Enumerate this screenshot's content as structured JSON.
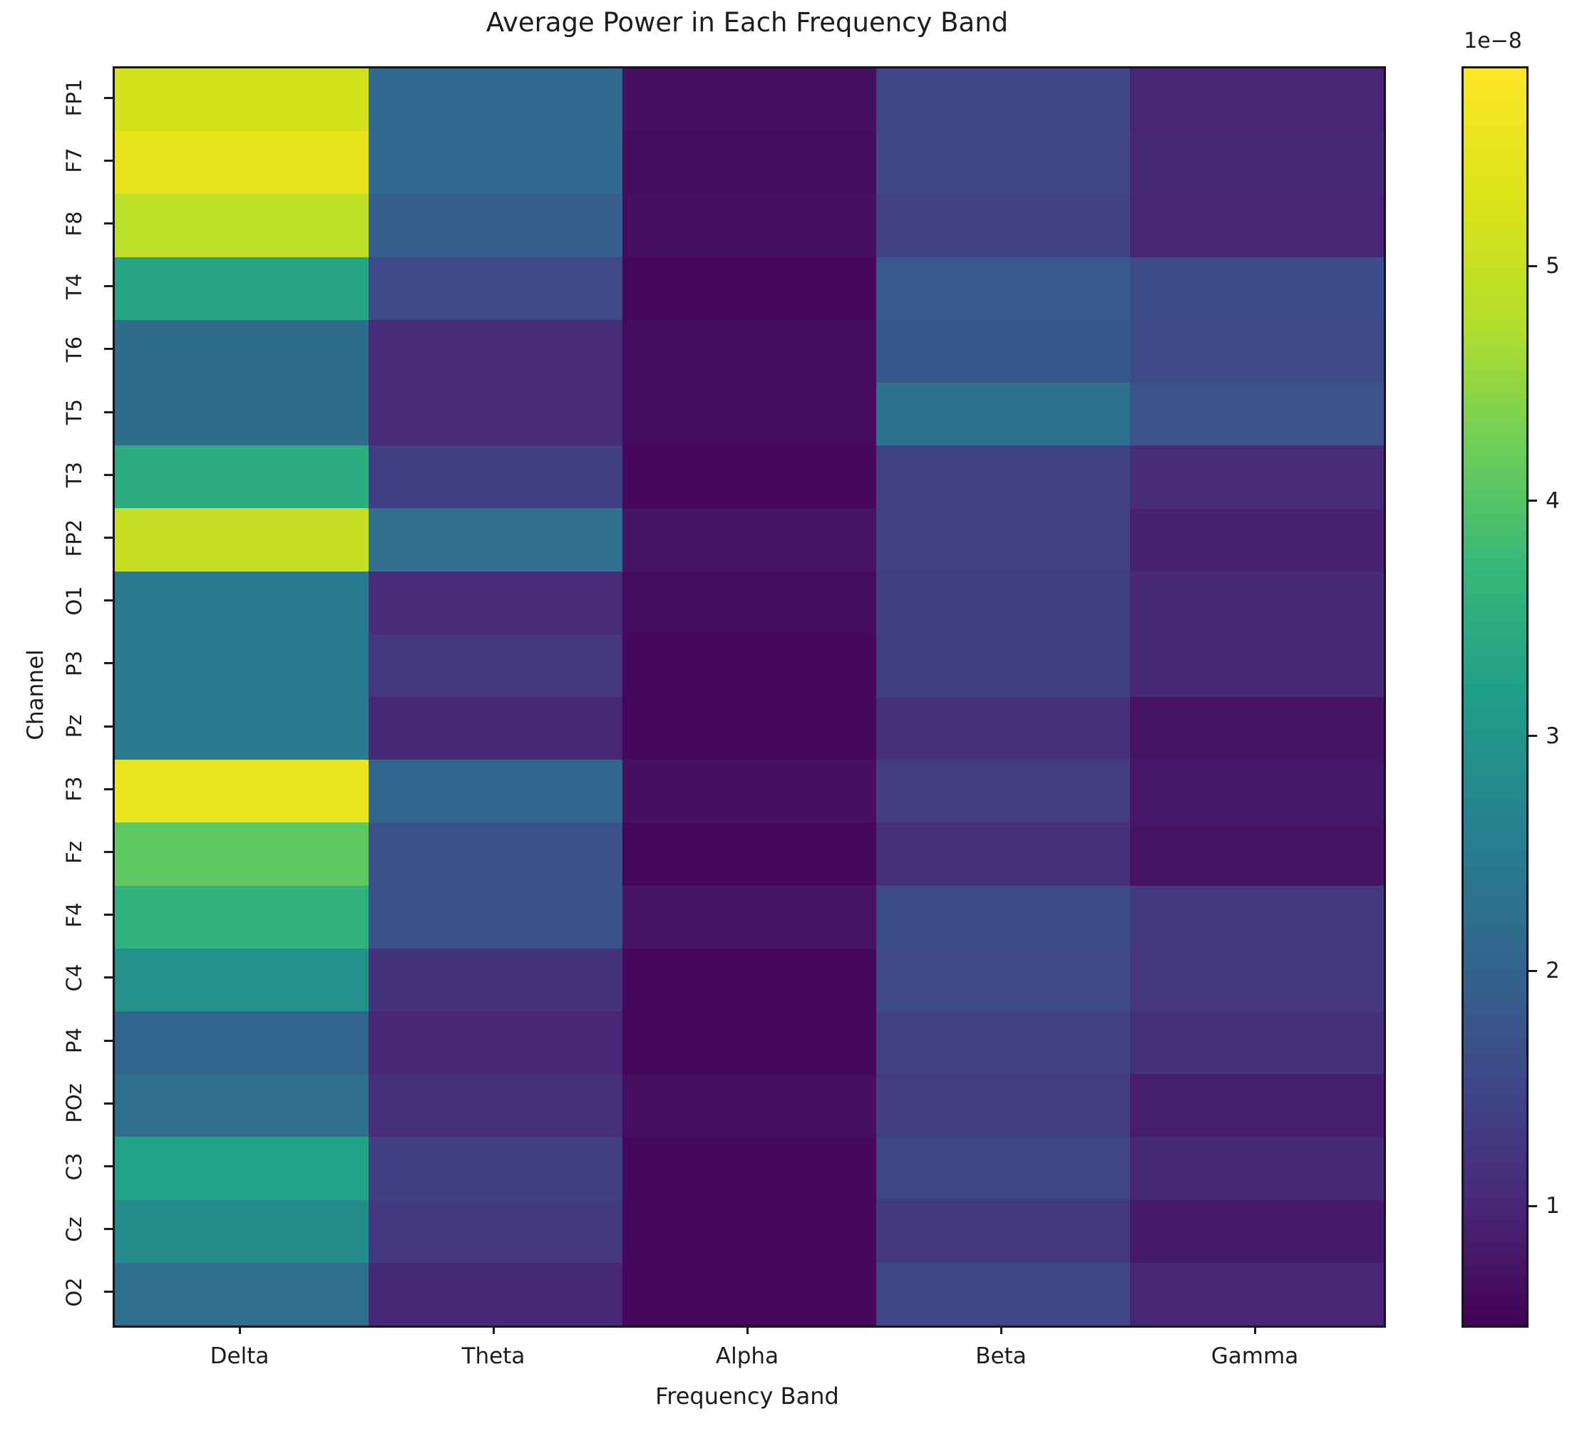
{
  "title": "Average Power in Each Frequency Band",
  "xlabel": "Frequency Band",
  "ylabel": "Channel",
  "colorbar": {
    "offset_label": "1e−8",
    "ticks": [
      5,
      4,
      3,
      2,
      1
    ],
    "top_color": "#fde725",
    "bottom_color": "#440154"
  },
  "chart_data": {
    "type": "heatmap",
    "colormap": "viridis",
    "title": "Average Power in Each Frequency Band",
    "xlabel": "Frequency Band",
    "ylabel": "Channel",
    "x_categories": [
      "Delta",
      "Theta",
      "Alpha",
      "Beta",
      "Gamma"
    ],
    "y_categories": [
      "FP1",
      "F7",
      "F8",
      "T4",
      "T6",
      "T5",
      "T3",
      "FP2",
      "O1",
      "P3",
      "Pz",
      "F3",
      "Fz",
      "F4",
      "C4",
      "P4",
      "POz",
      "C3",
      "Cz",
      "O2"
    ],
    "value_units": "×1e-8",
    "vmin": 0.5,
    "vmax": 5.85,
    "legend_position": "right-colorbar",
    "grid": false,
    "values": [
      [
        5.2,
        2.1,
        0.7,
        1.5,
        1.0
      ],
      [
        5.5,
        2.1,
        0.65,
        1.5,
        1.05
      ],
      [
        4.9,
        1.9,
        0.7,
        1.45,
        1.0
      ],
      [
        3.3,
        1.55,
        0.6,
        1.85,
        1.6
      ],
      [
        2.2,
        1.1,
        0.65,
        1.8,
        1.55
      ],
      [
        2.2,
        1.1,
        0.65,
        2.3,
        1.75
      ],
      [
        3.5,
        1.4,
        0.6,
        1.45,
        1.1
      ],
      [
        5.0,
        2.25,
        0.75,
        1.45,
        0.95
      ],
      [
        2.45,
        1.1,
        0.65,
        1.4,
        1.05
      ],
      [
        2.45,
        1.25,
        0.6,
        1.4,
        1.05
      ],
      [
        2.45,
        1.05,
        0.6,
        1.15,
        0.75
      ],
      [
        5.55,
        2.05,
        0.7,
        1.35,
        0.8
      ],
      [
        4.1,
        1.7,
        0.6,
        1.15,
        0.75
      ],
      [
        3.6,
        1.7,
        0.75,
        1.6,
        1.3
      ],
      [
        2.95,
        1.2,
        0.6,
        1.55,
        1.25
      ],
      [
        2.05,
        1.0,
        0.6,
        1.45,
        1.15
      ],
      [
        2.25,
        1.15,
        0.7,
        1.35,
        0.9
      ],
      [
        3.25,
        1.4,
        0.6,
        1.5,
        1.05
      ],
      [
        2.85,
        1.3,
        0.6,
        1.3,
        0.85
      ],
      [
        2.25,
        1.05,
        0.6,
        1.5,
        1.0
      ]
    ]
  }
}
